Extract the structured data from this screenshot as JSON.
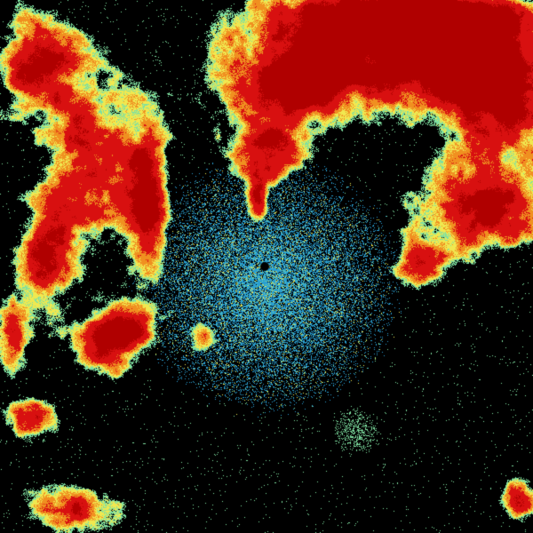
{
  "image": {
    "kind": "weather radar reflectivity",
    "background": "#000000",
    "palette": {
      "clutter": "#2a9fd0",
      "weak": "#7fe0a0",
      "light": "#f0e850",
      "moderate": "#f09020",
      "heavy": "#d81010",
      "intense": "#b00000"
    }
  }
}
